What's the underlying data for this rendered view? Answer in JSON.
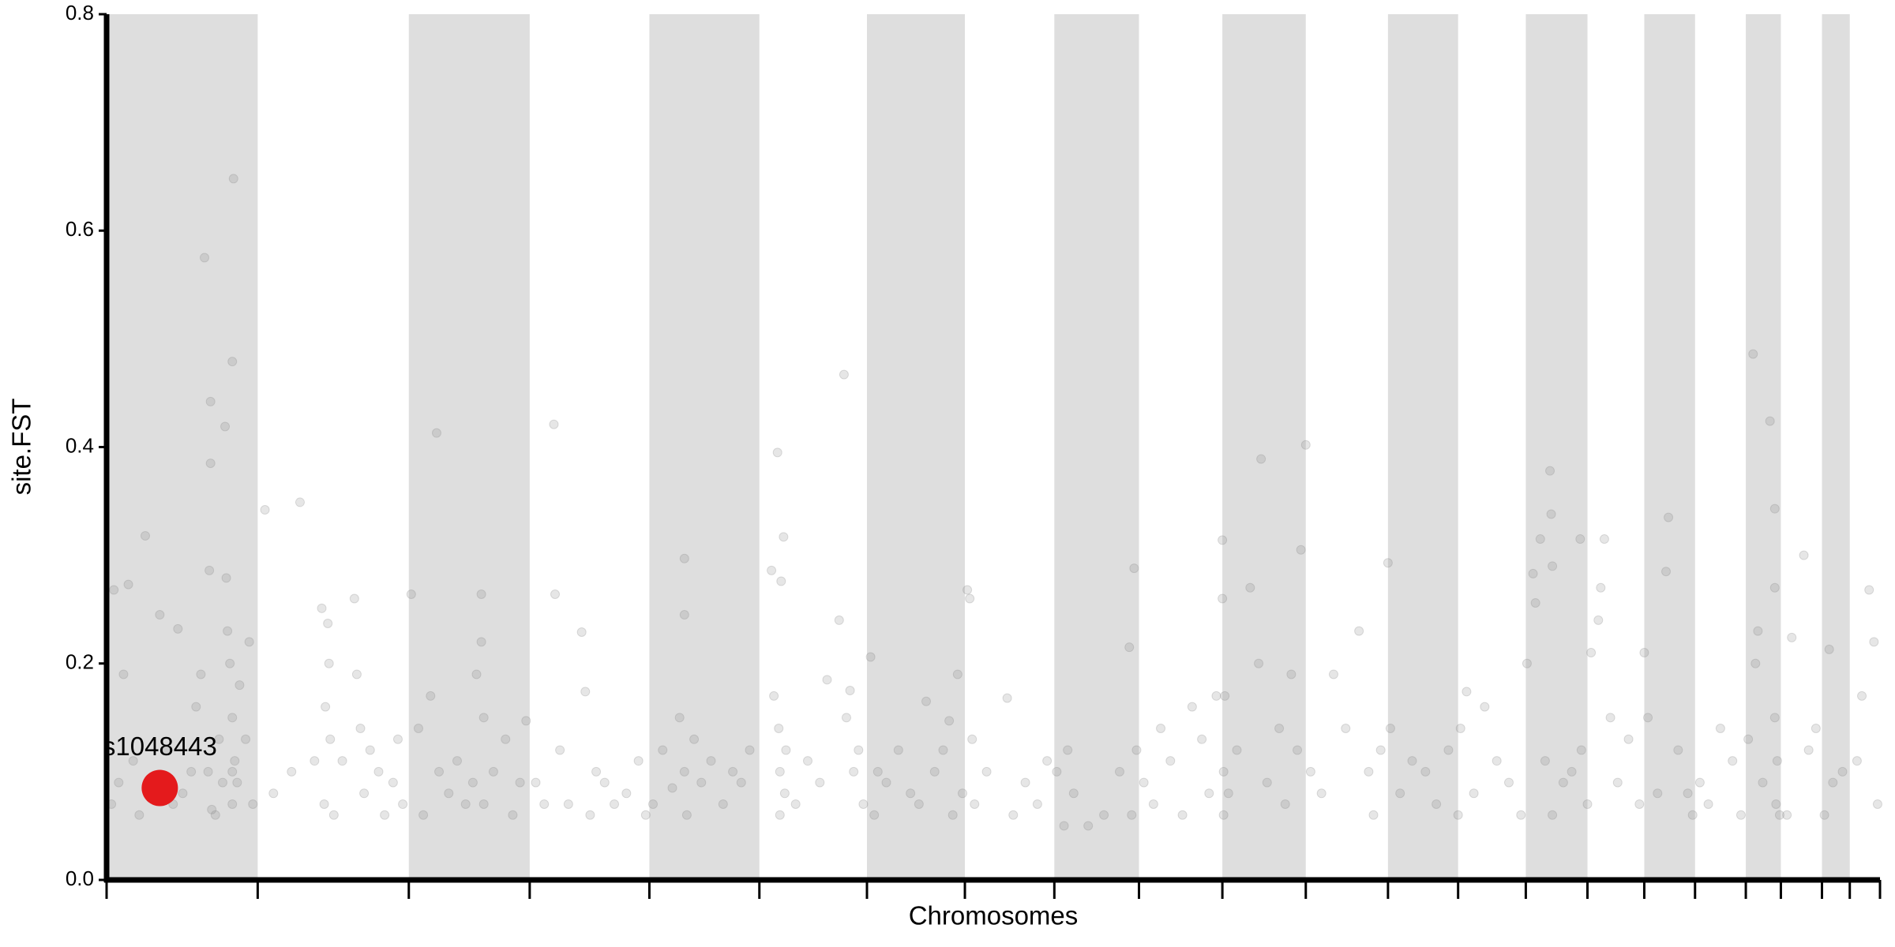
{
  "chart_data": {
    "type": "scatter",
    "x_label": "Chromosomes",
    "y_label": "site.FST",
    "xlim": [
      0,
      1467
    ],
    "ylim": [
      0,
      0.8
    ],
    "xticks": [
      0,
      125,
      250,
      350,
      449,
      540,
      629,
      710,
      784,
      854,
      923,
      992,
      1060,
      1118,
      1174,
      1225,
      1272,
      1314,
      1356,
      1385,
      1419,
      1442,
      1467
    ],
    "yticks": [
      {
        "value": 0,
        "label": "0.0"
      },
      0.2,
      0.4,
      0.6,
      0.8
    ],
    "band_color": "#dedede",
    "color": "#808080",
    "x": [
      4,
      6,
      10,
      14,
      18,
      22,
      27,
      32,
      38,
      44,
      50,
      55,
      59,
      63,
      70,
      74,
      78,
      81,
      84,
      85,
      86,
      86,
      87,
      90,
      93,
      96,
      98,
      99,
      100,
      102,
      104,
      104,
      104,
      104,
      105,
      106,
      108,
      110,
      115,
      118,
      121,
      131,
      138,
      153,
      160,
      172,
      178,
      180,
      181,
      183,
      184,
      185,
      188,
      195,
      205,
      207,
      210,
      213,
      218,
      225,
      230,
      237,
      241,
      245,
      252,
      258,
      262,
      268,
      273,
      275,
      283,
      290,
      297,
      303,
      306,
      310,
      310,
      312,
      312,
      320,
      330,
      336,
      342,
      347,
      355,
      362,
      370,
      371,
      375,
      382,
      393,
      396,
      400,
      405,
      412,
      420,
      430,
      440,
      446,
      452,
      460,
      468,
      474,
      478,
      478,
      478,
      480,
      486,
      492,
      500,
      510,
      518,
      525,
      532,
      550,
      552,
      555,
      556,
      557,
      557,
      558,
      560,
      561,
      562,
      570,
      580,
      590,
      596,
      606,
      610,
      612,
      615,
      618,
      622,
      626,
      632,
      635,
      638,
      645,
      655,
      665,
      672,
      678,
      685,
      692,
      697,
      700,
      704,
      708,
      712,
      714,
      716,
      718,
      728,
      745,
      750,
      760,
      770,
      778,
      786,
      792,
      795,
      800,
      812,
      825,
      838,
      846,
      848,
      850,
      852,
      858,
      866,
      872,
      880,
      890,
      898,
      906,
      912,
      918,
      923,
      923,
      924,
      924,
      925,
      928,
      935,
      946,
      953,
      955,
      960,
      970,
      975,
      980,
      985,
      988,
      992,
      996,
      1005,
      1015,
      1025,
      1036,
      1044,
      1048,
      1054,
      1060,
      1062,
      1070,
      1080,
      1091,
      1100,
      1110,
      1118,
      1120,
      1125,
      1131,
      1140,
      1150,
      1160,
      1170,
      1175,
      1180,
      1182,
      1186,
      1190,
      1194,
      1195,
      1196,
      1196,
      1205,
      1212,
      1219,
      1220,
      1225,
      1228,
      1234,
      1236,
      1239,
      1244,
      1250,
      1259,
      1268,
      1272,
      1275,
      1283,
      1290,
      1292,
      1300,
      1308,
      1312,
      1318,
      1325,
      1335,
      1345,
      1352,
      1358,
      1362,
      1364,
      1366,
      1370,
      1376,
      1380,
      1380,
      1380,
      1381,
      1382,
      1384,
      1390,
      1394,
      1404,
      1408,
      1414,
      1421,
      1425,
      1428,
      1436,
      1448,
      1452,
      1458,
      1462,
      1465
    ],
    "values": [
      0.07,
      0.268,
      0.09,
      0.19,
      0.273,
      0.11,
      0.06,
      0.318,
      0.09,
      0.245,
      0.12,
      0.07,
      0.232,
      0.08,
      0.1,
      0.16,
      0.19,
      0.575,
      0.1,
      0.286,
      0.442,
      0.385,
      0.065,
      0.06,
      0.13,
      0.09,
      0.419,
      0.279,
      0.23,
      0.2,
      0.479,
      0.15,
      0.07,
      0.1,
      0.648,
      0.11,
      0.09,
      0.18,
      0.13,
      0.22,
      0.07,
      0.342,
      0.08,
      0.1,
      0.349,
      0.11,
      0.251,
      0.07,
      0.16,
      0.237,
      0.2,
      0.13,
      0.06,
      0.11,
      0.26,
      0.19,
      0.14,
      0.08,
      0.12,
      0.1,
      0.06,
      0.09,
      0.13,
      0.07,
      0.264,
      0.14,
      0.06,
      0.17,
      0.413,
      0.1,
      0.08,
      0.11,
      0.07,
      0.09,
      0.19,
      0.264,
      0.22,
      0.15,
      0.07,
      0.1,
      0.13,
      0.06,
      0.09,
      0.147,
      0.09,
      0.07,
      0.421,
      0.264,
      0.12,
      0.07,
      0.229,
      0.174,
      0.06,
      0.1,
      0.09,
      0.07,
      0.08,
      0.11,
      0.06,
      0.07,
      0.12,
      0.085,
      0.15,
      0.297,
      0.245,
      0.1,
      0.06,
      0.13,
      0.09,
      0.11,
      0.07,
      0.1,
      0.09,
      0.12,
      0.286,
      0.17,
      0.395,
      0.14,
      0.1,
      0.06,
      0.276,
      0.317,
      0.08,
      0.12,
      0.07,
      0.11,
      0.09,
      0.185,
      0.24,
      0.467,
      0.15,
      0.175,
      0.1,
      0.12,
      0.07,
      0.206,
      0.06,
      0.1,
      0.09,
      0.12,
      0.08,
      0.07,
      0.165,
      0.1,
      0.12,
      0.147,
      0.06,
      0.19,
      0.08,
      0.268,
      0.26,
      0.13,
      0.07,
      0.1,
      0.168,
      0.06,
      0.09,
      0.07,
      0.11,
      0.1,
      0.05,
      0.12,
      0.08,
      0.05,
      0.06,
      0.1,
      0.215,
      0.06,
      0.288,
      0.12,
      0.09,
      0.07,
      0.14,
      0.11,
      0.06,
      0.16,
      0.13,
      0.08,
      0.17,
      0.314,
      0.26,
      0.1,
      0.06,
      0.17,
      0.08,
      0.12,
      0.27,
      0.2,
      0.389,
      0.09,
      0.14,
      0.07,
      0.19,
      0.12,
      0.305,
      0.402,
      0.1,
      0.08,
      0.19,
      0.14,
      0.23,
      0.1,
      0.06,
      0.12,
      0.293,
      0.14,
      0.08,
      0.11,
      0.1,
      0.07,
      0.12,
      0.06,
      0.14,
      0.174,
      0.08,
      0.16,
      0.11,
      0.09,
      0.06,
      0.2,
      0.283,
      0.256,
      0.315,
      0.11,
      0.378,
      0.338,
      0.29,
      0.06,
      0.09,
      0.1,
      0.315,
      0.12,
      0.07,
      0.21,
      0.24,
      0.27,
      0.315,
      0.15,
      0.09,
      0.13,
      0.07,
      0.21,
      0.15,
      0.08,
      0.285,
      0.335,
      0.12,
      0.08,
      0.06,
      0.09,
      0.07,
      0.14,
      0.11,
      0.06,
      0.13,
      0.486,
      0.2,
      0.23,
      0.09,
      0.424,
      0.343,
      0.27,
      0.15,
      0.07,
      0.11,
      0.06,
      0.06,
      0.224,
      0.3,
      0.12,
      0.14,
      0.06,
      0.213,
      0.09,
      0.1,
      0.11,
      0.17,
      0.268,
      0.22,
      0.07
    ],
    "highlight": {
      "x": 44,
      "value": 0.085,
      "label": "s1048443",
      "color": "#e41a1c"
    }
  }
}
